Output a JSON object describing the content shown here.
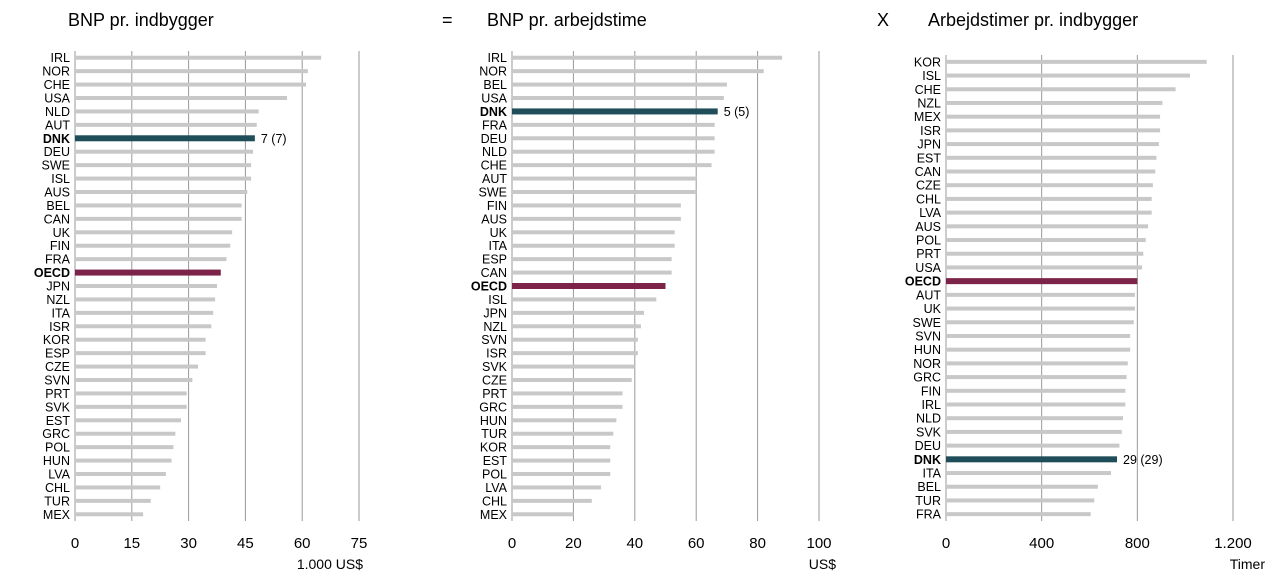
{
  "colors": {
    "bar": "#c8c8c8",
    "highlight_dnk": "#1f4e5a",
    "highlight_oecd": "#7b2348",
    "grid": "#999999",
    "axis": "#999999"
  },
  "operators": {
    "equals": "=",
    "times": "X"
  },
  "chart_data": [
    {
      "type": "bar",
      "orientation": "horizontal",
      "title": "BNP pr. indbygger",
      "xlabel": "1.000 US$",
      "xlim": [
        0,
        75
      ],
      "xticks": [
        "0",
        "15",
        "30",
        "45",
        "60",
        "75"
      ],
      "grid": true,
      "categories": [
        "IRL",
        "NOR",
        "CHE",
        "USA",
        "NLD",
        "AUT",
        "DNK",
        "DEU",
        "SWE",
        "ISL",
        "AUS",
        "BEL",
        "CAN",
        "UK",
        "FIN",
        "FRA",
        "OECD",
        "JPN",
        "NZL",
        "ITA",
        "ISR",
        "KOR",
        "ESP",
        "CZE",
        "SVN",
        "PRT",
        "SVK",
        "EST",
        "GRC",
        "POL",
        "HUN",
        "LVA",
        "CHL",
        "TUR",
        "MEX"
      ],
      "values": [
        65,
        61.5,
        61,
        56,
        48.5,
        48,
        47.5,
        47,
        46.5,
        46.5,
        45.5,
        44,
        44,
        41.5,
        41,
        40,
        38.5,
        37.5,
        37,
        36.5,
        36,
        34.5,
        34.5,
        32.5,
        31,
        29.5,
        29.5,
        28,
        26.5,
        26,
        25.5,
        24,
        22.5,
        20,
        18
      ],
      "highlight": {
        "DNK": "highlight_dnk",
        "OECD": "highlight_oecd"
      },
      "bold_categories": [
        "DNK",
        "OECD"
      ],
      "annotation": {
        "category": "DNK",
        "text": "7 (7)"
      }
    },
    {
      "type": "bar",
      "orientation": "horizontal",
      "title": "BNP pr. arbejdstime",
      "xlabel": "US$",
      "xlim": [
        0,
        100
      ],
      "xticks": [
        "0",
        "20",
        "40",
        "60",
        "80",
        "100"
      ],
      "grid": true,
      "categories": [
        "IRL",
        "NOR",
        "BEL",
        "USA",
        "DNK",
        "FRA",
        "DEU",
        "NLD",
        "CHE",
        "AUT",
        "SWE",
        "FIN",
        "AUS",
        "UK",
        "ITA",
        "ESP",
        "CAN",
        "OECD",
        "ISL",
        "JPN",
        "NZL",
        "SVN",
        "ISR",
        "SVK",
        "CZE",
        "PRT",
        "GRC",
        "HUN",
        "TUR",
        "KOR",
        "EST",
        "POL",
        "LVA",
        "CHL",
        "MEX"
      ],
      "values": [
        88,
        82,
        70,
        69,
        67,
        66,
        66,
        66,
        65,
        60,
        60,
        55,
        55,
        53,
        53,
        52,
        52,
        50,
        47,
        43,
        42,
        41,
        41,
        40,
        39,
        36,
        36,
        34,
        33,
        32,
        32,
        32,
        29,
        26,
        20
      ],
      "highlight": {
        "DNK": "highlight_dnk",
        "OECD": "highlight_oecd"
      },
      "bold_categories": [
        "DNK",
        "OECD"
      ],
      "annotation": {
        "category": "DNK",
        "text": "5 (5)"
      }
    },
    {
      "type": "bar",
      "orientation": "horizontal",
      "title": "Arbejdstimer pr. indbygger",
      "xlabel": "Timer",
      "xlim": [
        0,
        1200
      ],
      "xticks": [
        "0",
        "400",
        "800",
        "1.200"
      ],
      "grid": true,
      "categories": [
        "KOR",
        "ISL",
        "CHE",
        "NZL",
        "MEX",
        "ISR",
        "JPN",
        "EST",
        "CAN",
        "CZE",
        "CHL",
        "LVA",
        "AUS",
        "POL",
        "PRT",
        "USA",
        "OECD",
        "AUT",
        "UK",
        "SWE",
        "SVN",
        "HUN",
        "NOR",
        "GRC",
        "FIN",
        "IRL",
        "NLD",
        "SVK",
        "DEU",
        "DNK",
        "ITA",
        "BEL",
        "TUR",
        "FRA"
      ],
      "values": [
        1090,
        1020,
        960,
        905,
        895,
        895,
        890,
        880,
        875,
        865,
        860,
        860,
        845,
        835,
        825,
        820,
        800,
        790,
        790,
        785,
        770,
        770,
        760,
        755,
        750,
        750,
        740,
        735,
        725,
        715,
        690,
        635,
        620,
        605
      ],
      "highlight": {
        "DNK": "highlight_dnk",
        "OECD": "highlight_oecd"
      },
      "bold_categories": [
        "DNK",
        "OECD"
      ],
      "annotation": {
        "category": "DNK",
        "text": "29 (29)"
      }
    }
  ]
}
